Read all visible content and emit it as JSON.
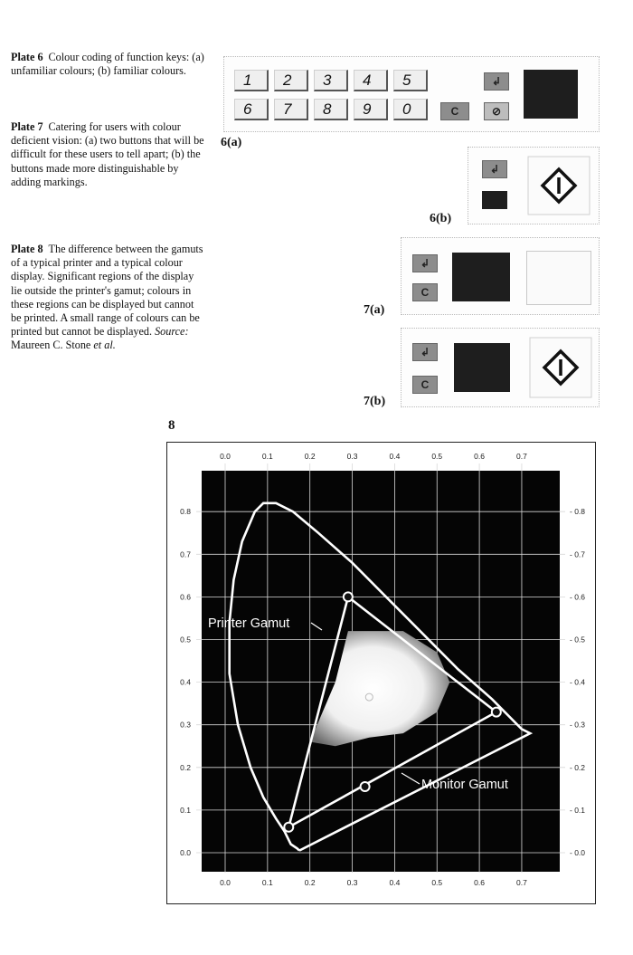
{
  "captions": [
    {
      "label": "Plate 6",
      "text": "Colour coding of function keys: (a) unfamiliar colours; (b) familiar colours."
    },
    {
      "label": "Plate 7",
      "text": "Catering for users with colour deficient vision: (a) two buttons that will be difficult for these users to tell apart; (b) the buttons made more distinguishable by adding markings."
    },
    {
      "label": "Plate 8",
      "text": "The difference between the gamuts of a typical printer and a typical colour display. Significant regions of the display lie outside the printer's gamut; colours in these regions can be displayed but cannot be printed. A small range of colours can be printed but cannot be displayed.",
      "source_label": "Source:",
      "source_text": "Maureen C. Stone",
      "source_etal": "et al."
    }
  ],
  "panels": {
    "p6a": {
      "label": "6(a)",
      "keys_row1": [
        "1",
        "2",
        "3",
        "4",
        "5"
      ],
      "keys_row2": [
        "6",
        "7",
        "8",
        "9",
        "0"
      ],
      "clear_key": "C",
      "arrow_key": "↲",
      "stop_key": "⊘"
    },
    "p6b": {
      "label": "6(b)",
      "arrow_key": "↲"
    },
    "p7a": {
      "label": "7(a)",
      "arrow_key": "↲",
      "clear_key": "C"
    },
    "p7b": {
      "label": "7(b)",
      "arrow_key": "↲",
      "clear_key": "C"
    }
  },
  "plate8": {
    "label": "8",
    "printer_label": "Printer Gamut",
    "monitor_label": "Monitor Gamut"
  },
  "chart_data": {
    "type": "scatter",
    "title": "",
    "xlabel": "",
    "ylabel": "",
    "xlim": [
      0.0,
      0.8
    ],
    "ylim": [
      0.0,
      0.8
    ],
    "x_ticks": [
      "0.0",
      "0.1",
      "0.2",
      "0.3",
      "0.4",
      "0.5",
      "0.6",
      "0.7"
    ],
    "y_ticks": [
      "0.0",
      "0.1",
      "0.2",
      "0.3",
      "0.4",
      "0.5",
      "0.6",
      "0.7",
      "0.8"
    ],
    "grid": true,
    "spectral_locus": [
      [
        0.175,
        0.005
      ],
      [
        0.17,
        0.01
      ],
      [
        0.155,
        0.02
      ],
      [
        0.14,
        0.05
      ],
      [
        0.12,
        0.08
      ],
      [
        0.09,
        0.13
      ],
      [
        0.06,
        0.2
      ],
      [
        0.03,
        0.3
      ],
      [
        0.01,
        0.42
      ],
      [
        0.01,
        0.54
      ],
      [
        0.02,
        0.64
      ],
      [
        0.04,
        0.73
      ],
      [
        0.07,
        0.8
      ],
      [
        0.09,
        0.82
      ],
      [
        0.12,
        0.82
      ],
      [
        0.16,
        0.8
      ],
      [
        0.22,
        0.75
      ],
      [
        0.3,
        0.68
      ],
      [
        0.38,
        0.6
      ],
      [
        0.46,
        0.52
      ],
      [
        0.55,
        0.43
      ],
      [
        0.63,
        0.36
      ],
      [
        0.7,
        0.29
      ],
      [
        0.72,
        0.28
      ],
      [
        0.175,
        0.005
      ]
    ],
    "monitor_gamut": {
      "red": [
        0.64,
        0.33
      ],
      "green": [
        0.29,
        0.6
      ],
      "blue": [
        0.15,
        0.06
      ],
      "white": [
        0.33,
        0.155
      ]
    },
    "printer_gamut_region": [
      [
        0.2,
        0.26
      ],
      [
        0.26,
        0.4
      ],
      [
        0.29,
        0.52
      ],
      [
        0.35,
        0.52
      ],
      [
        0.42,
        0.52
      ],
      [
        0.5,
        0.47
      ],
      [
        0.53,
        0.4
      ],
      [
        0.5,
        0.33
      ],
      [
        0.42,
        0.28
      ],
      [
        0.34,
        0.27
      ],
      [
        0.26,
        0.25
      ]
    ]
  }
}
